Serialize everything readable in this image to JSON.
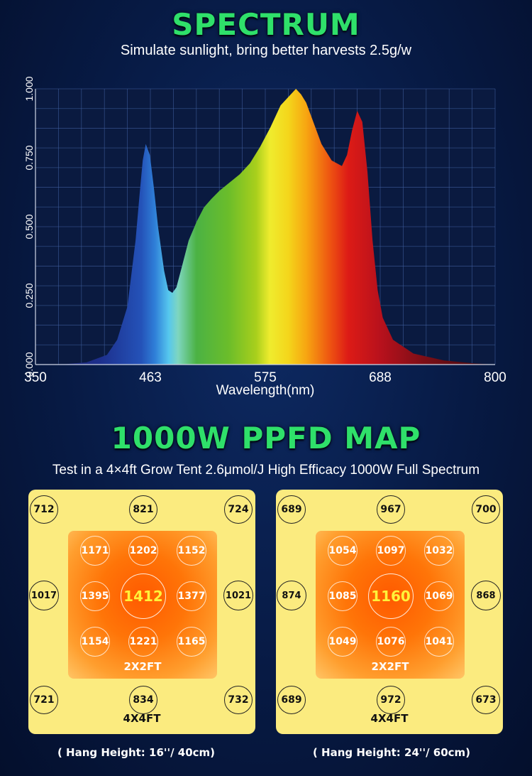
{
  "spectrum": {
    "title": "SPECTRUM",
    "subtitle": "Simulate sunlight, bring better harvests 2.5g/w"
  },
  "chart_data": {
    "type": "area",
    "title": "",
    "xlabel": "Wavelength(nm)",
    "ylabel": "",
    "xlim": [
      350,
      800
    ],
    "ylim": [
      0,
      1
    ],
    "x_ticks": [
      "350",
      "463",
      "575",
      "688",
      "800"
    ],
    "y_ticks": [
      "0.000",
      "0.250",
      "0.500",
      "0.750",
      "1.000"
    ],
    "grid": true,
    "series": [
      {
        "x": [
          350,
          380,
          400,
          420,
          430,
          440,
          448,
          452,
          455,
          458,
          462,
          466,
          470,
          476,
          480,
          484,
          488,
          493,
          500,
          508,
          515,
          522,
          530,
          540,
          550,
          560,
          570,
          580,
          590,
          600,
          605,
          610,
          615,
          620,
          630,
          640,
          650,
          655,
          660,
          665,
          670,
          675,
          680,
          685,
          690,
          700,
          720,
          750,
          780,
          800
        ],
        "y": [
          0.0,
          0.002,
          0.008,
          0.035,
          0.09,
          0.21,
          0.45,
          0.62,
          0.74,
          0.8,
          0.76,
          0.64,
          0.5,
          0.34,
          0.27,
          0.26,
          0.28,
          0.35,
          0.45,
          0.52,
          0.57,
          0.6,
          0.63,
          0.66,
          0.69,
          0.73,
          0.79,
          0.86,
          0.94,
          0.98,
          1.0,
          0.98,
          0.95,
          0.9,
          0.8,
          0.74,
          0.72,
          0.76,
          0.85,
          0.92,
          0.88,
          0.7,
          0.45,
          0.27,
          0.17,
          0.09,
          0.04,
          0.015,
          0.004,
          0.0
        ]
      }
    ]
  },
  "ppfd": {
    "title": "1000W PPFD MAP",
    "subtitle": "Test in a 4×4ft Grow Tent 2.6μmol/J High Efficacy 1000W Full Spectrum",
    "maps": [
      {
        "outer": {
          "top": [
            "712",
            "821",
            "724"
          ],
          "middle": [
            "1017",
            "1021"
          ],
          "bottom": [
            "721",
            "834",
            "732"
          ]
        },
        "inner": [
          [
            "1171",
            "1202",
            "1152"
          ],
          [
            "1395",
            "1412",
            "1377"
          ],
          [
            "1154",
            "1221",
            "1165"
          ]
        ],
        "inner_label": "2X2FT",
        "outer_label": "4X4FT",
        "hang_height": "( Hang Height: 16''/ 40cm)"
      },
      {
        "outer": {
          "top": [
            "689",
            "967",
            "700"
          ],
          "middle": [
            "874",
            "868"
          ],
          "bottom": [
            "689",
            "972",
            "673"
          ]
        },
        "inner": [
          [
            "1054",
            "1097",
            "1032"
          ],
          [
            "1085",
            "1160",
            "1069"
          ],
          [
            "1049",
            "1076",
            "1041"
          ]
        ],
        "inner_label": "2X2FT",
        "outer_label": "4X4FT",
        "hang_height": "( Hang Height: 24''/ 60cm)"
      }
    ]
  }
}
